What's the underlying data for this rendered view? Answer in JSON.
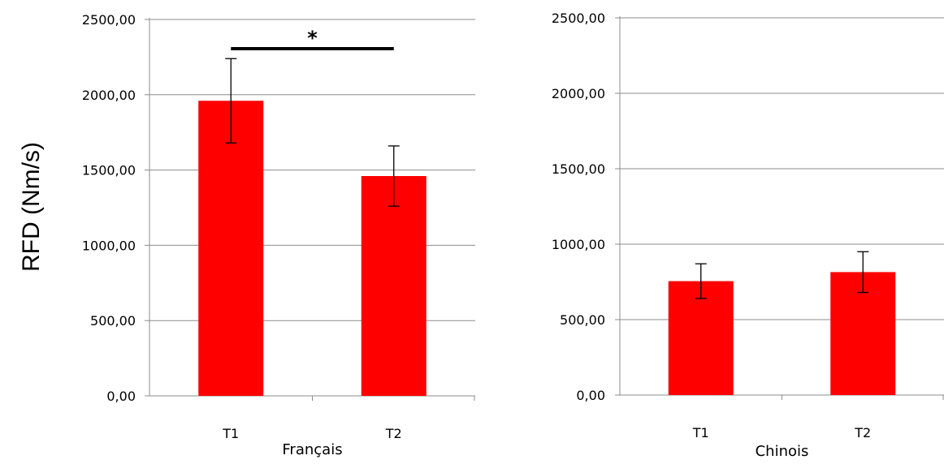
{
  "chart_data": [
    {
      "type": "bar",
      "categories": [
        "T1",
        "T2"
      ],
      "values": [
        1960,
        1460
      ],
      "errors": [
        280,
        200
      ],
      "xlabel": "Français",
      "ylabel": "RFD (Nm/s)",
      "ylim": [
        0,
        2500
      ],
      "yticks": [
        "0,00",
        "500,00",
        "1000,00",
        "1500,00",
        "2000,00",
        "2500,00"
      ],
      "grid": true,
      "bar_color": "#ff0000",
      "significance": {
        "from": "T1",
        "to": "T2",
        "label": "*"
      }
    },
    {
      "type": "bar",
      "categories": [
        "T1",
        "T2"
      ],
      "values": [
        755,
        815
      ],
      "errors": [
        115,
        135
      ],
      "xlabel": "Chinois",
      "ylim": [
        0,
        2500
      ],
      "yticks": [
        "0,00",
        "500,00",
        "1000,00",
        "1500,00",
        "2000,00",
        "2500,00"
      ],
      "grid": true,
      "bar_color": "#ff0000"
    }
  ]
}
